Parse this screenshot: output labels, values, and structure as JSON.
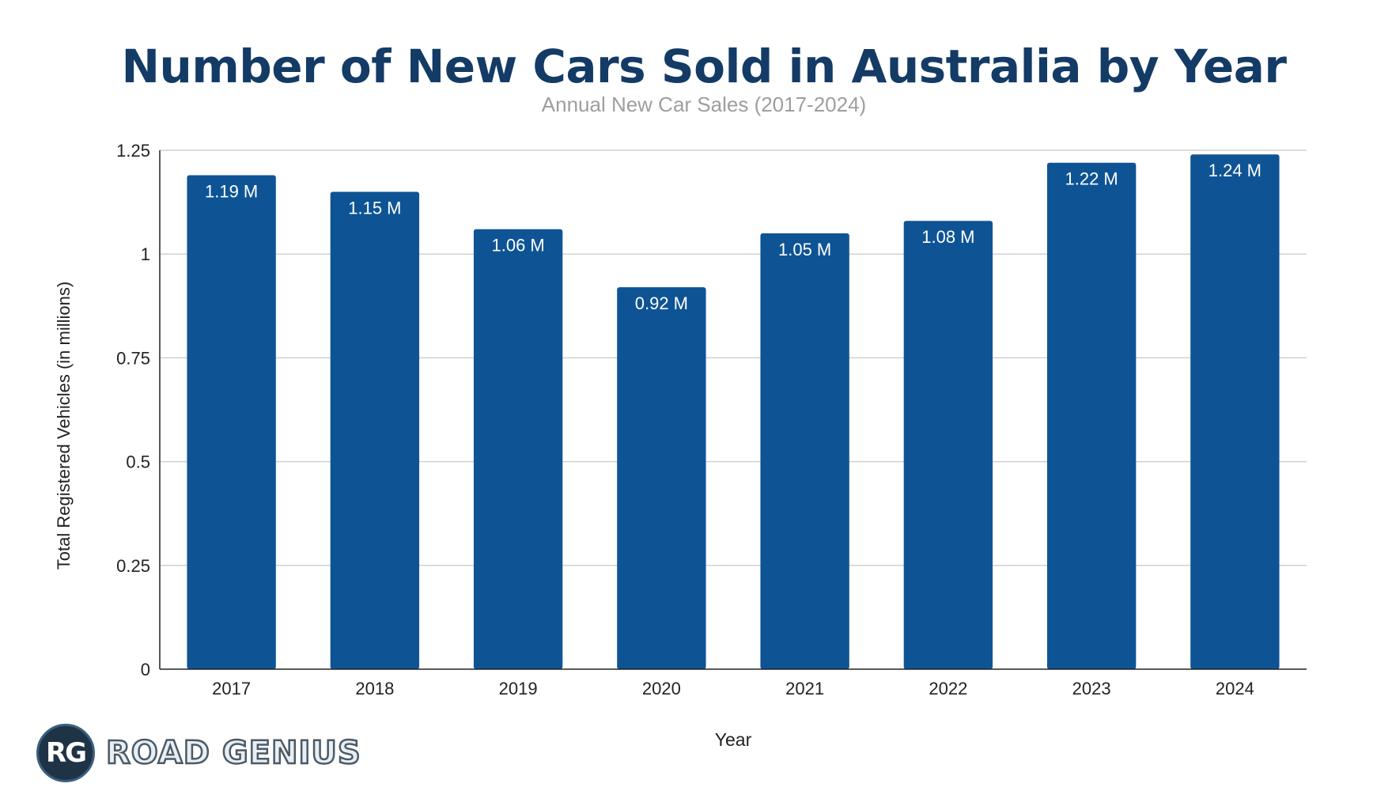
{
  "chart_data": {
    "type": "bar",
    "title": "Number of New Cars Sold in Australia by Year",
    "subtitle": "Annual New Car Sales (2017-2024)",
    "xlabel": "Year",
    "ylabel": "Total Registered Vehicles (in millions)",
    "categories": [
      "2017",
      "2018",
      "2019",
      "2020",
      "2021",
      "2022",
      "2023",
      "2024"
    ],
    "values": [
      1.19,
      1.15,
      1.06,
      0.92,
      1.05,
      1.08,
      1.22,
      1.24
    ],
    "data_labels": [
      "1.19 M",
      "1.15 M",
      "1.06 M",
      "0.92 M",
      "1.05 M",
      "1.08 M",
      "1.22 M",
      "1.24 M"
    ],
    "ylim": [
      0,
      1.25
    ],
    "yticks": [
      0,
      0.25,
      0.5,
      0.75,
      1,
      1.25
    ],
    "ytick_labels": [
      "0",
      "0.25",
      "0.5",
      "0.75",
      "1",
      "1.25"
    ],
    "grid": true,
    "legend": "none",
    "colors": {
      "bar": "#0e5495",
      "title": "#133b66",
      "subtitle": "#9e9e9e",
      "grid": "#d0d0d0",
      "axis": "#222222",
      "label_text": "#ffffff"
    }
  },
  "brand": {
    "badge_text": "RG",
    "name": "ROAD GENIUS"
  }
}
